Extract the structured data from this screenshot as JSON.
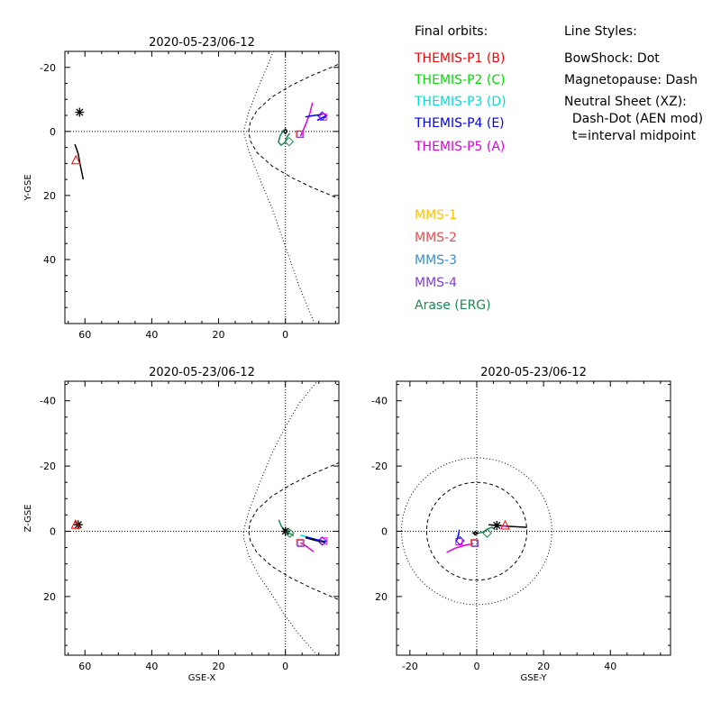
{
  "colors": {
    "THEMIS-P1": "#ff0000",
    "THEMIS-P2": "#00dd00",
    "THEMIS-P3": "#00dddd",
    "THEMIS-P4": "#0000ff",
    "THEMIS-P5": "#dd00dd",
    "MMS-1": "#ffc000",
    "MMS-2": "#e05050",
    "MMS-3": "#3c8ccc",
    "MMS-4": "#8040d0",
    "Arase": "#1a8a50",
    "black": "#000000"
  },
  "legend": {
    "orbits_title": "Final orbits:",
    "styles_title": "Line Styles:",
    "orbit_items": [
      {
        "label": "THEMIS-P1 (B)",
        "color": "#ff0000"
      },
      {
        "label": "THEMIS-P2 (C)",
        "color": "#00dd00"
      },
      {
        "label": "THEMIS-P3 (D)",
        "color": "#00dddd"
      },
      {
        "label": "THEMIS-P4 (E)",
        "color": "#0000ff"
      },
      {
        "label": "THEMIS-P5 (A)",
        "color": "#dd00dd"
      }
    ],
    "mms_items": [
      {
        "label": "MMS-1",
        "color": "#ffc000"
      },
      {
        "label": "MMS-2",
        "color": "#e05050"
      },
      {
        "label": "MMS-3",
        "color": "#3c8ccc"
      },
      {
        "label": "MMS-4",
        "color": "#8040d0"
      },
      {
        "label": "Arase (ERG)",
        "color": "#1a8a50"
      }
    ],
    "style_items": [
      "BowShock: Dot",
      "Magnetopause: Dash",
      "Neutral Sheet (XZ):",
      "  Dash-Dot (AEN mod)",
      "  t=interval midpoint"
    ]
  },
  "chart_data": [
    {
      "id": "xy",
      "type": "line",
      "title": "2020-05-23/06-12",
      "xlabel": "",
      "ylabel": "Y-GSE",
      "xlim": [
        66,
        -16
      ],
      "ylim": [
        -25,
        60
      ],
      "xticks": [
        60,
        40,
        20,
        0
      ],
      "yticks": [
        -20,
        0,
        20,
        40
      ],
      "yticklabels": [
        "-20",
        "0",
        "20",
        "40"
      ],
      "boundaries": {
        "bowshock": [
          [
            -9.5,
            -62
          ],
          [
            -4,
            -48
          ],
          [
            0,
            -36
          ],
          [
            4,
            -24
          ],
          [
            8,
            -14
          ],
          [
            11,
            -6
          ],
          [
            12.5,
            0
          ],
          [
            11,
            6
          ],
          [
            8,
            14
          ],
          [
            4,
            24
          ],
          [
            0,
            36
          ],
          [
            -4,
            48
          ],
          [
            -9.5,
            62
          ]
        ],
        "magnetopause": [
          [
            -30,
            -26
          ],
          [
            -16,
            -21
          ],
          [
            -8,
            -17.5
          ],
          [
            -2,
            -14.5
          ],
          [
            4,
            -10.8
          ],
          [
            8.5,
            -6.6
          ],
          [
            10.5,
            -3
          ],
          [
            11,
            0
          ],
          [
            10.5,
            3
          ],
          [
            8.5,
            6.6
          ],
          [
            4,
            10.8
          ],
          [
            -2,
            14.5
          ],
          [
            -8,
            17.5
          ],
          [
            -16,
            21
          ],
          [
            -30,
            26
          ]
        ]
      },
      "series": [
        {
          "color": "black",
          "points": [
            [
              63,
              4
            ],
            [
              62,
              7
            ],
            [
              61.5,
              10
            ],
            [
              60.5,
              15
            ]
          ]
        },
        {
          "color": "black",
          "points": [
            [
              0.5,
              0
            ],
            [
              0,
              0.7
            ],
            [
              -0.5,
              0
            ],
            [
              0,
              -0.7
            ],
            [
              0.5,
              0
            ]
          ]
        },
        {
          "color": "Arase",
          "points": [
            [
              0.5,
              -0.5
            ],
            [
              1.6,
              1.4
            ],
            [
              2.1,
              3.3
            ],
            [
              1.3,
              4.3
            ],
            [
              0.2,
              3.5
            ],
            [
              -0.6,
              1.5
            ],
            [
              -1.3,
              0.6
            ]
          ]
        },
        {
          "color": "THEMIS-P5",
          "points": [
            [
              -4.5,
              1.5
            ],
            [
              -6,
              -2
            ],
            [
              -7.3,
              -5.5
            ],
            [
              -8.1,
              -9
            ]
          ]
        },
        {
          "color": "THEMIS-P4",
          "points": [
            [
              -6,
              -4.5
            ],
            [
              -8.5,
              -5
            ],
            [
              -11,
              -5.3
            ]
          ]
        },
        {
          "color": "THEMIS-P4",
          "points": [
            [
              -9.5,
              -3.5
            ],
            [
              -11.2,
              -4.4
            ],
            [
              -12.5,
              -5
            ]
          ]
        }
      ],
      "markers": [
        {
          "shape": "asterisk",
          "color": "black",
          "at": [
            61.6,
            -6
          ]
        },
        {
          "shape": "triangle",
          "color": "THEMIS-P1",
          "at": [
            62.7,
            9
          ]
        },
        {
          "shape": "diamond",
          "color": "Arase",
          "at": [
            -1.1,
            3.2
          ]
        },
        {
          "shape": "square",
          "color": "MMS-2",
          "at": [
            -4.2,
            0.8
          ]
        },
        {
          "shape": "square",
          "color": "MMS-4",
          "at": [
            -4.5,
            0.9
          ]
        },
        {
          "shape": "diamond",
          "color": "THEMIS-P4",
          "at": [
            -11,
            -4.8
          ]
        },
        {
          "shape": "square",
          "color": "THEMIS-P5",
          "at": [
            -11.3,
            -4.5
          ]
        }
      ]
    },
    {
      "id": "xz",
      "type": "line",
      "title": "2020-05-23/06-12",
      "xlabel": "GSE-X",
      "ylabel": "Z-GSE",
      "xlim": [
        66,
        -16
      ],
      "ylim": [
        -46,
        38
      ],
      "xticks": [
        60,
        40,
        20,
        0
      ],
      "yticks": [
        -40,
        -20,
        0,
        20
      ],
      "yticklabels": [
        "-40",
        "-20",
        "0",
        "20"
      ],
      "boundaries": {
        "bowshock": [
          [
            -9.5,
            38
          ],
          [
            -4,
            31.5
          ],
          [
            0,
            26
          ],
          [
            4,
            19.5
          ],
          [
            8,
            13.5
          ],
          [
            11,
            7.5
          ],
          [
            12.5,
            2
          ],
          [
            12.5,
            0
          ],
          [
            11,
            -6
          ],
          [
            8,
            -14
          ],
          [
            4,
            -24
          ],
          [
            0,
            -32
          ],
          [
            -4,
            -39
          ],
          [
            -9.5,
            -46
          ]
        ],
        "magnetopause": [
          [
            -30,
            26
          ],
          [
            -16,
            21
          ],
          [
            -8,
            17.5
          ],
          [
            -2,
            14.5
          ],
          [
            4,
            10.8
          ],
          [
            8.5,
            6.6
          ],
          [
            10.5,
            3
          ],
          [
            11,
            0
          ],
          [
            10.5,
            -3
          ],
          [
            8.5,
            -6.6
          ],
          [
            4,
            -10.8
          ],
          [
            -2,
            -14.5
          ],
          [
            -8,
            -17.5
          ],
          [
            -16,
            -21
          ],
          [
            -30,
            -26
          ]
        ]
      },
      "series": [
        {
          "color": "black",
          "points": [
            [
              63,
              -2
            ],
            [
              62,
              -2
            ],
            [
              61,
              -2
            ]
          ]
        },
        {
          "color": "black",
          "points": [
            [
              0.5,
              0
            ],
            [
              0,
              0.7
            ],
            [
              -0.5,
              0
            ],
            [
              0,
              -0.7
            ],
            [
              0.5,
              0
            ]
          ]
        },
        {
          "color": "Arase",
          "points": [
            [
              2,
              -3.5
            ],
            [
              1.2,
              -1.5
            ],
            [
              0.2,
              -0.4
            ],
            [
              -1.2,
              0.6
            ],
            [
              -2.5,
              1.4
            ]
          ]
        },
        {
          "color": "THEMIS-P5",
          "points": [
            [
              -4.5,
              3.5
            ],
            [
              -6.5,
              4.8
            ],
            [
              -8.5,
              6.3
            ]
          ]
        },
        {
          "color": "THEMIS-P3",
          "points": [
            [
              -4.5,
              1.2
            ],
            [
              -7,
              1.9
            ],
            [
              -9.5,
              2.7
            ],
            [
              -11.5,
              3.3
            ]
          ]
        },
        {
          "color": "THEMIS-P4",
          "points": [
            [
              -6,
              1.7
            ],
            [
              -9,
              2.5
            ],
            [
              -12,
              3.2
            ]
          ]
        },
        {
          "color": "black",
          "points": [
            [
              -6,
              2
            ],
            [
              -9,
              2.8
            ],
            [
              -12,
              3.4
            ]
          ]
        }
      ],
      "markers": [
        {
          "shape": "asterisk",
          "color": "black",
          "at": [
            62,
            -2
          ]
        },
        {
          "shape": "triangle",
          "color": "THEMIS-P1",
          "at": [
            62.8,
            -2
          ]
        },
        {
          "shape": "asterisk",
          "color": "black",
          "at": [
            0,
            0
          ]
        },
        {
          "shape": "diamond",
          "color": "Arase",
          "at": [
            -1.3,
            0.6
          ]
        },
        {
          "shape": "square",
          "color": "MMS-2",
          "at": [
            -4.3,
            3.4
          ]
        },
        {
          "shape": "square",
          "color": "MMS-4",
          "at": [
            -4.6,
            3.7
          ]
        },
        {
          "shape": "diamond",
          "color": "THEMIS-P4",
          "at": [
            -11,
            3
          ]
        },
        {
          "shape": "square",
          "color": "THEMIS-P5",
          "at": [
            -11.5,
            3
          ]
        }
      ]
    },
    {
      "id": "yz",
      "type": "line",
      "title": "2020-05-23/06-12",
      "xlabel": "GSE-Y",
      "ylabel": "",
      "xlim": [
        -24,
        58
      ],
      "ylim": [
        -46,
        38
      ],
      "xticks": [
        -20,
        0,
        20,
        40
      ],
      "yticks": [
        -40,
        -20,
        0,
        20
      ],
      "yticklabels": [
        "-40",
        "-20",
        "0",
        "20"
      ],
      "circles": [
        {
          "style": "dot",
          "r": 22.5
        },
        {
          "style": "dash",
          "r": 15
        }
      ],
      "series": [
        {
          "color": "THEMIS-P5",
          "points": [
            [
              -9,
              6.5
            ],
            [
              -6.5,
              5.2
            ],
            [
              -3.5,
              4.3
            ],
            [
              -1,
              3.8
            ]
          ]
        },
        {
          "color": "THEMIS-P4",
          "points": [
            [
              -6,
              2.8
            ],
            [
              -5.5,
              1.2
            ],
            [
              -5.2,
              -0.5
            ]
          ]
        },
        {
          "color": "black",
          "points": [
            [
              3.5,
              -2
            ],
            [
              6,
              -1.8
            ],
            [
              9.5,
              -1.5
            ],
            [
              15,
              -1.2
            ]
          ]
        },
        {
          "color": "THEMIS-P5",
          "points": [
            [
              6,
              -1.8
            ],
            [
              9,
              -1.5
            ]
          ]
        },
        {
          "color": "Arase",
          "points": [
            [
              -1.5,
              0.5
            ],
            [
              0.5,
              0.6
            ],
            [
              2,
              0.2
            ],
            [
              3,
              -0.6
            ],
            [
              4.5,
              -1.2
            ],
            [
              5.5,
              -0.5
            ]
          ]
        },
        {
          "color": "black",
          "points": [
            [
              -1,
              0.6
            ],
            [
              -0.5,
              1.1
            ],
            [
              0.3,
              0.6
            ],
            [
              -0.4,
              0.1
            ],
            [
              -1,
              0.6
            ]
          ]
        }
      ],
      "markers": [
        {
          "shape": "square",
          "color": "MMS-2",
          "at": [
            -0.8,
            3.5
          ]
        },
        {
          "shape": "square",
          "color": "MMS-4",
          "at": [
            -0.5,
            3.7
          ]
        },
        {
          "shape": "diamond",
          "color": "THEMIS-P4",
          "at": [
            -5,
            2.9
          ]
        },
        {
          "shape": "square",
          "color": "THEMIS-P5",
          "at": [
            -5.3,
            3.2
          ]
        },
        {
          "shape": "diamond",
          "color": "Arase",
          "at": [
            3.1,
            0.6
          ]
        },
        {
          "shape": "asterisk",
          "color": "black",
          "at": [
            6,
            -1.8
          ]
        },
        {
          "shape": "triangle",
          "color": "THEMIS-P1",
          "at": [
            8.5,
            -1.8
          ]
        }
      ]
    }
  ]
}
